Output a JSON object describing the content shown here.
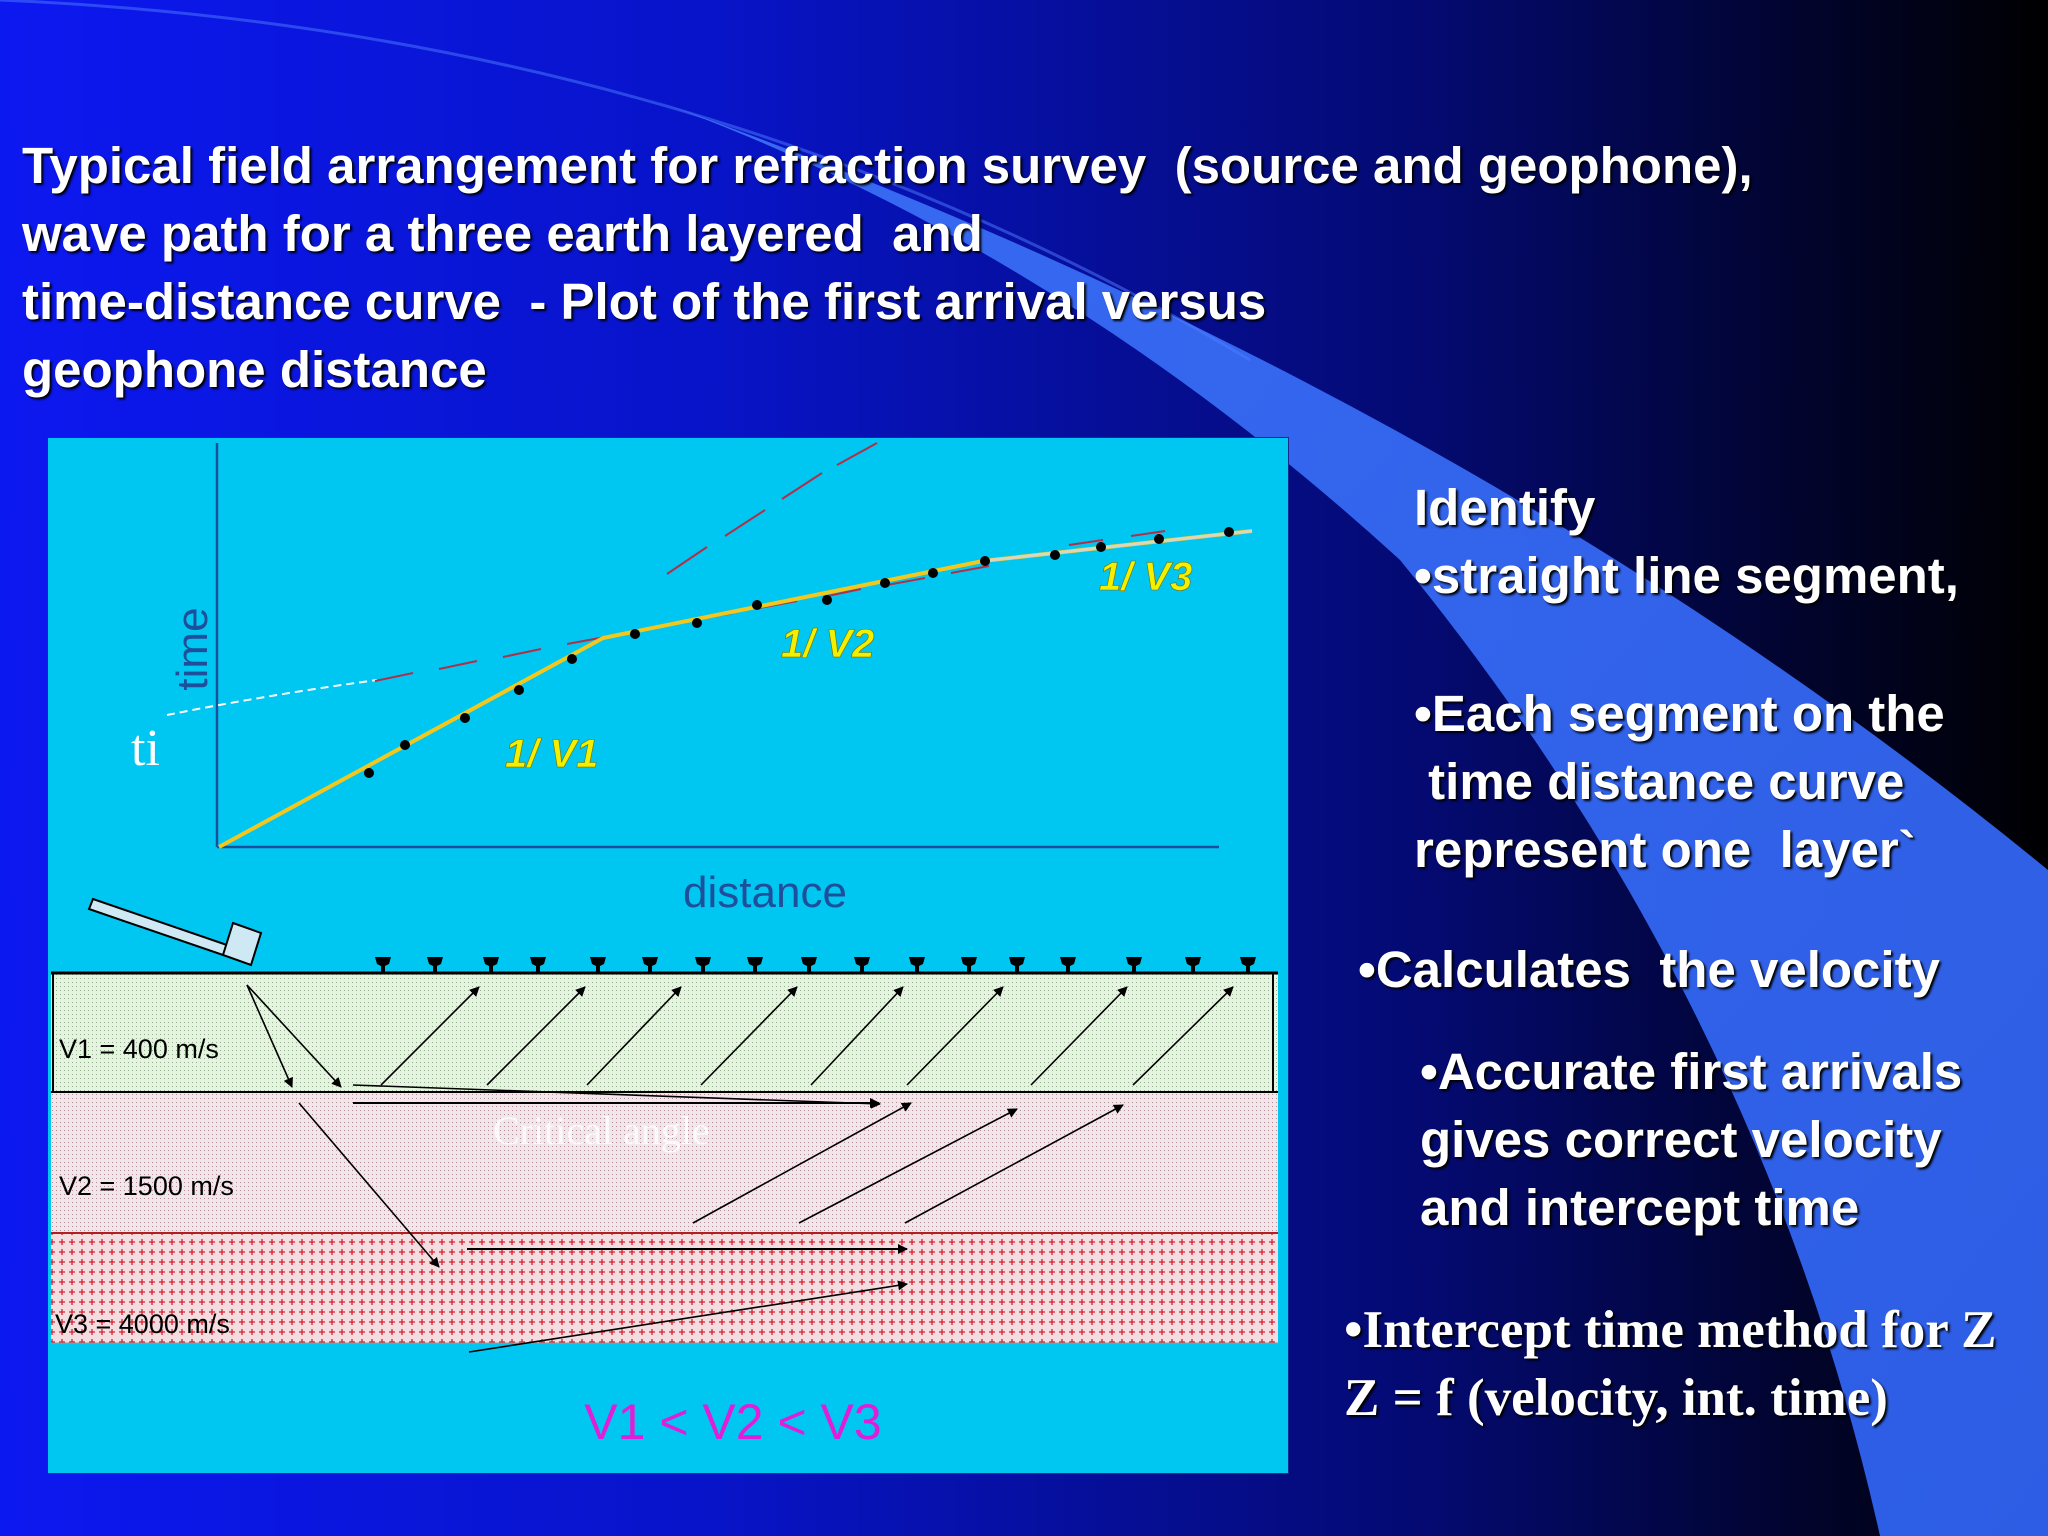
{
  "title": {
    "lines": [
      "Typical field arrangement for refraction survey  (source and geophone),",
      "wave path for a three earth layered  and",
      "time-distance curve  - Plot of the first arrival versus",
      "geophone distance"
    ]
  },
  "diagram": {
    "axis_time": "time",
    "axis_distance": "distance",
    "intercept_label": "ti",
    "segments": [
      "1/ V1",
      "1/ V2",
      "1/ V3"
    ],
    "layers": [
      "V1 = 400 m/s",
      "V2 = 1500 m/s",
      "V3 = 4000 m/s"
    ],
    "critical_angle_label": "Critical angle",
    "relation": "V1 < V2 < V3"
  },
  "notes": {
    "identify": "Identify",
    "straight": "•straight line segment,",
    "each_1": "•Each segment on the",
    "each_2": " time distance curve",
    "each_3": "represent one  layer`",
    "calc": "•Calculates  the velocity",
    "acc_1": "•Accurate first arrivals",
    "acc_2": "gives correct velocity",
    "acc_3": "and intercept time",
    "int_1": "•Intercept time method for Z",
    "int_2": "Z = f (velocity, int. time)"
  },
  "colors": {
    "slide_blue": "#0a14e6",
    "panel_cyan": "#00c6f2",
    "curve_yellow": "#f2c81e",
    "segment_label": "#f0f000",
    "axis_blue": "#1d4f9a",
    "relation_magenta": "#e01ed8"
  }
}
